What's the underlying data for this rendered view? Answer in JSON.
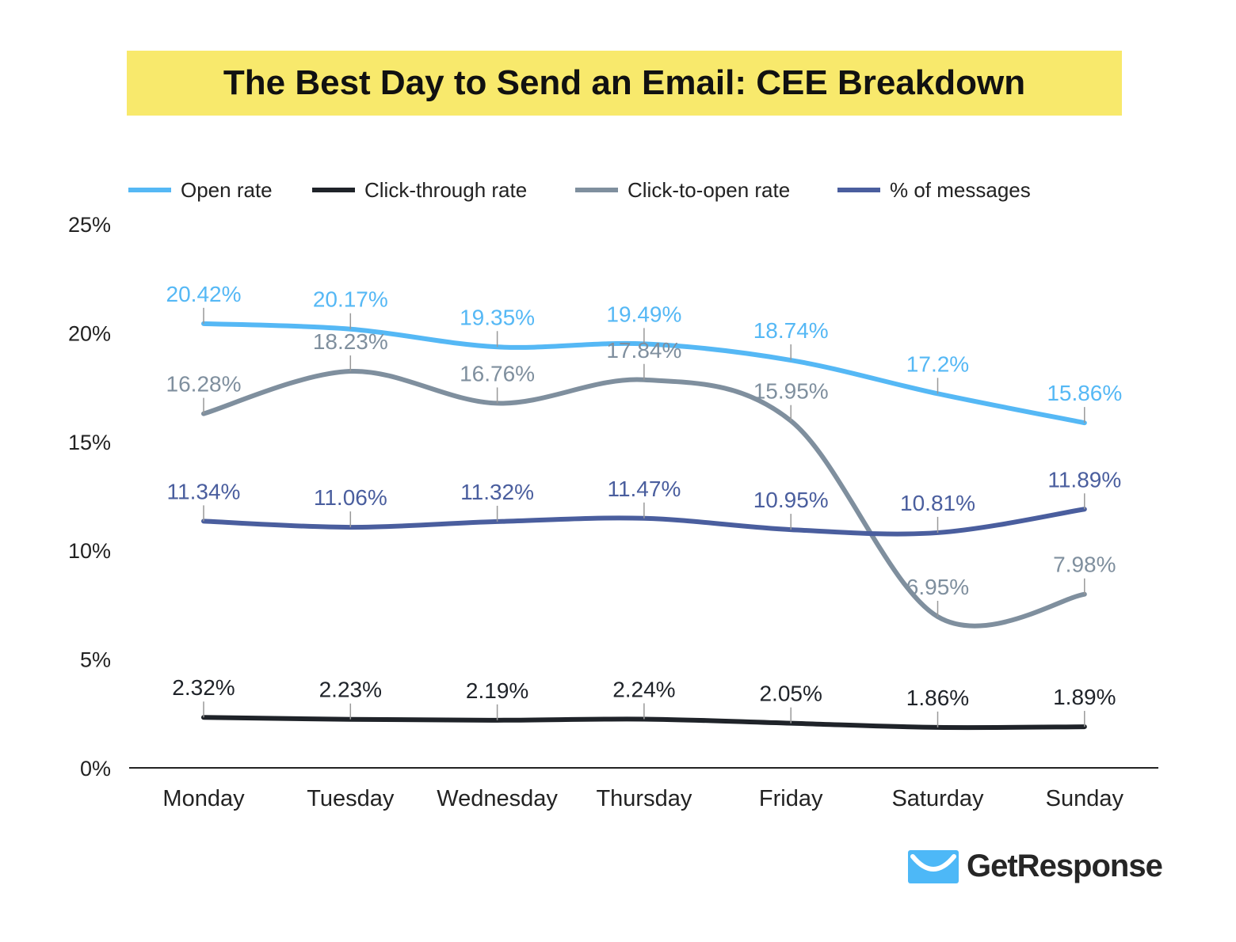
{
  "chart_data": {
    "type": "line",
    "title": "The Best Day to Send an Email: CEE Breakdown",
    "categories": [
      "Monday",
      "Tuesday",
      "Wednesday",
      "Thursday",
      "Friday",
      "Saturday",
      "Sunday"
    ],
    "ylim": [
      0,
      25
    ],
    "yticks": [
      "0%",
      "5%",
      "10%",
      "15%",
      "20%",
      "25%"
    ],
    "legend_position": "top",
    "grid": false,
    "series": [
      {
        "name": "Open rate",
        "color": "#55b8f5",
        "values": [
          20.42,
          20.17,
          19.35,
          19.49,
          18.74,
          17.2,
          15.86
        ],
        "labels": [
          "20.42%",
          "20.17%",
          "19.35%",
          "19.49%",
          "18.74%",
          "17.2%",
          "15.86%"
        ]
      },
      {
        "name": "Click-through rate",
        "color": "#1f2329",
        "values": [
          2.32,
          2.23,
          2.19,
          2.24,
          2.05,
          1.86,
          1.89
        ],
        "labels": [
          "2.32%",
          "2.23%",
          "2.19%",
          "2.24%",
          "2.05%",
          "1.86%",
          "1.89%"
        ]
      },
      {
        "name": "Click-to-open rate",
        "color": "#7f8f9e",
        "values": [
          16.28,
          18.23,
          16.76,
          17.84,
          15.95,
          6.95,
          7.98
        ],
        "labels": [
          "16.28%",
          "18.23%",
          "16.76%",
          "17.84%",
          "15.95%",
          "6.95%",
          "7.98%"
        ]
      },
      {
        "name": "% of messages",
        "color": "#4a5e9e",
        "values": [
          11.34,
          11.06,
          11.32,
          11.47,
          10.95,
          10.81,
          11.89
        ],
        "labels": [
          "11.34%",
          "11.06%",
          "11.32%",
          "11.47%",
          "10.95%",
          "10.81%",
          "11.89%"
        ]
      }
    ]
  },
  "logo": {
    "text": "GetResponse",
    "color": "#4db8f7"
  }
}
